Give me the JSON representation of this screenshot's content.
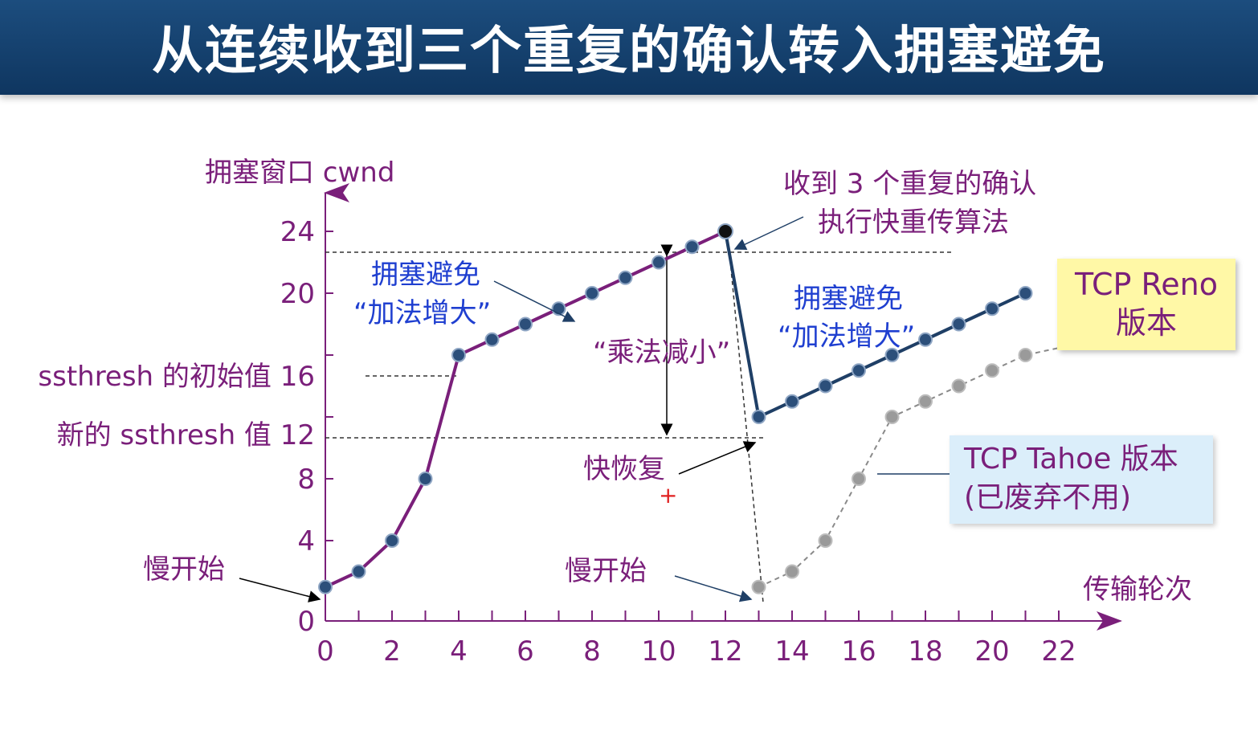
{
  "title": "从连续收到三个重复的确认转入拥塞避免",
  "chart_data": {
    "type": "line",
    "ylabel": "拥塞窗口 cwnd",
    "xlabel": "传输轮次",
    "xlim": [
      0,
      22
    ],
    "ylim": [
      0,
      24
    ],
    "x_ticks": [
      "0",
      "2",
      "4",
      "6",
      "8",
      "10",
      "12",
      "14",
      "16",
      "18",
      "20",
      "22"
    ],
    "y_ticks": [
      "0",
      "4",
      "8",
      "12",
      "16",
      "20",
      "24"
    ],
    "y_labels": {
      "ssthresh_initial": "ssthresh 的初始值 16",
      "ssthresh_new": "新的 ssthresh 值 12"
    },
    "series": [
      {
        "name": "TCP Reno 版本",
        "color": "#1f3f66",
        "x": [
          0,
          1,
          2,
          3,
          4,
          5,
          6,
          7,
          8,
          9,
          10,
          11,
          12,
          13,
          14,
          15,
          16,
          17,
          18,
          19,
          20,
          21
        ],
        "values": [
          1,
          2,
          4,
          8,
          16,
          17,
          18,
          19,
          20,
          21,
          22,
          23,
          24,
          12,
          13,
          14,
          15,
          16,
          17,
          18,
          19,
          20
        ]
      },
      {
        "name": "TCP Tahoe 版本",
        "color": "#8a8a8a",
        "x": [
          13,
          14,
          15,
          16,
          17,
          18,
          19,
          20,
          21
        ],
        "values": [
          1,
          2,
          4,
          8,
          12,
          13,
          14,
          15,
          16
        ]
      }
    ],
    "annotations": {
      "slow_start_1": "慢开始",
      "slow_start_2": "慢开始",
      "ca_1_line1": "拥塞避免",
      "ca_1_line2": "“加法增大”",
      "ca_2_line1": "拥塞避免",
      "ca_2_line2": "“加法增大”",
      "mult_decrease": "“乘法减小”",
      "fast_recovery": "快恢复",
      "three_dup_line1": "收到 3 个重复的确认",
      "three_dup_line2": "执行快重传算法",
      "reno_line1": "TCP Reno",
      "reno_line2": "版本",
      "tahoe_line1": "TCP Tahoe 版本",
      "tahoe_line2": "(已废弃不用)"
    },
    "colors": {
      "purple_segment": "#7a1f7a",
      "reno_segment": "#1f3f66",
      "tahoe_segment": "#8a8a8a",
      "axis": "#000000"
    }
  }
}
